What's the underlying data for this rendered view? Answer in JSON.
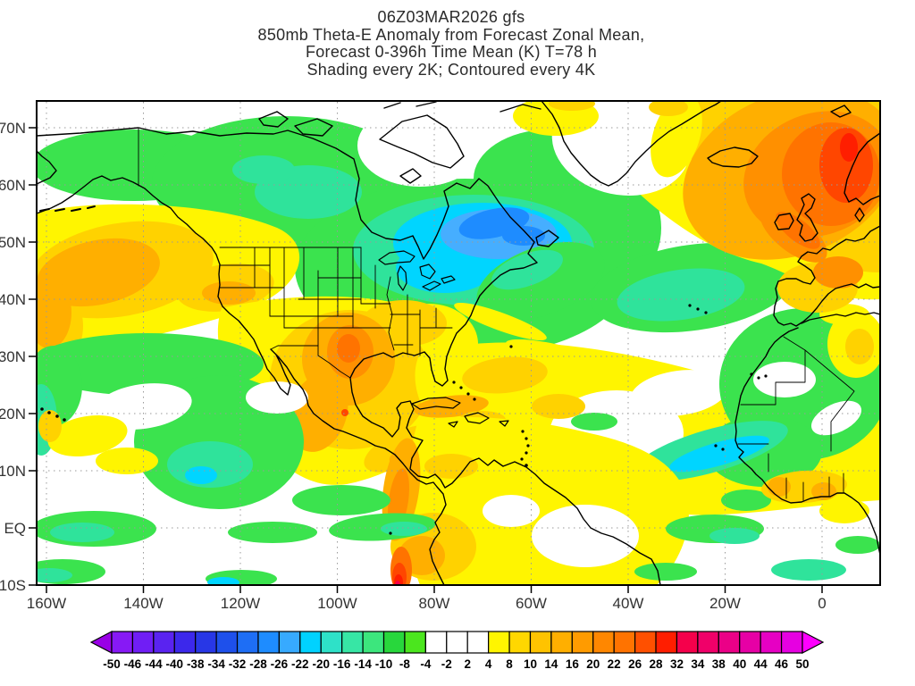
{
  "title": {
    "line1": "06Z03MAR2026 gfs",
    "line2": "850mb Theta-E Anomaly from Forecast Zonal Mean,",
    "line3": "Forecast 0-396h Time Mean (K) T=78 h",
    "line4": "Shading every 2K; Contoured every 4K"
  },
  "map": {
    "lat_ticks": [
      "70N",
      "60N",
      "50N",
      "40N",
      "30N",
      "20N",
      "10N",
      "EQ",
      "10S"
    ],
    "lon_ticks": [
      "160W",
      "140W",
      "120W",
      "100W",
      "80W",
      "60W",
      "40W",
      "20W",
      "0"
    ]
  },
  "colorbar": {
    "labels": [
      "-50",
      "-46",
      "-44",
      "-40",
      "-38",
      "-34",
      "-32",
      "-28",
      "-26",
      "-22",
      "-20",
      "-16",
      "-14",
      "-10",
      "-8",
      "-4",
      "-2",
      "2",
      "4",
      "8",
      "10",
      "14",
      "16",
      "20",
      "22",
      "26",
      "28",
      "32",
      "34",
      "38",
      "40",
      "44",
      "46",
      "50"
    ],
    "segment_colors": [
      "#8719F5",
      "#701EF5",
      "#5A23F0",
      "#3C28EB",
      "#2837E6",
      "#1E50EB",
      "#1E6EF5",
      "#1E8CFF",
      "#37AAFF",
      "#00D2FF",
      "#2EE1C8",
      "#37E6A5",
      "#3CE67D",
      "#28D73C",
      "#4BE61E",
      "#FFFFFF",
      "#FFFFFF",
      "#FFFFFF",
      "#FFF500",
      "#FFD700",
      "#FFC300",
      "#FFAF00",
      "#FF9B00",
      "#FF8700",
      "#FF7300",
      "#FF5000",
      "#FF1E00",
      "#F5004B",
      "#F00069",
      "#EB0087",
      "#E600A5",
      "#E600C3",
      "#E600E1"
    ],
    "arrow_left_color": "#9900E6",
    "arrow_right_color": "#FF00FF"
  },
  "chart_data": {
    "type": "heatmap",
    "title": "850mb Theta-E Anomaly from Forecast Zonal Mean",
    "model": "gfs",
    "init_time": "06Z03MAR2026",
    "forecast": "Forecast 0-396h Time Mean",
    "t_hour": 78,
    "units": "K",
    "shading_interval_K": 2,
    "contour_interval_K": 4,
    "lat_range": [
      "10S",
      "75N"
    ],
    "lon_range": [
      "162W",
      "12E"
    ],
    "y_ticks": [
      "70N",
      "60N",
      "50N",
      "40N",
      "30N",
      "20N",
      "10N",
      "EQ",
      "10S"
    ],
    "x_ticks": [
      "160W",
      "140W",
      "120W",
      "100W",
      "80W",
      "60W",
      "40W",
      "20W",
      "0"
    ],
    "grid": true,
    "legend_position": "bottom",
    "shading_levels": [
      -50,
      -46,
      -44,
      -40,
      -38,
      -34,
      -32,
      -28,
      -26,
      -22,
      -20,
      -16,
      -14,
      -10,
      -8,
      -4,
      -2,
      2,
      4,
      8,
      10,
      14,
      16,
      20,
      22,
      26,
      28,
      32,
      34,
      38,
      40,
      44,
      46,
      50
    ],
    "palette": [
      "#9900E6",
      "#8719F5",
      "#701EF5",
      "#5A23F0",
      "#3C28EB",
      "#2837E6",
      "#1E50EB",
      "#1E6EF5",
      "#1E8CFF",
      "#37AAFF",
      "#00D2FF",
      "#2EE1C8",
      "#37E6A5",
      "#3CE67D",
      "#28D73C",
      "#4BE61E",
      "#FFFFFF",
      "#FFFFFF",
      "#FFFFFF",
      "#FFF500",
      "#FFD700",
      "#FFC300",
      "#FFAF00",
      "#FF9B00",
      "#FF8700",
      "#FF7300",
      "#FF5000",
      "#FF1E00",
      "#F5004B",
      "#F00069",
      "#EB0087",
      "#E600A5",
      "#E600C3",
      "#E600E1",
      "#FF00FF"
    ],
    "anomaly_features": [
      {
        "region": "Hudson Bay / eastern Canada",
        "sign": "negative",
        "peak_K": -30
      },
      {
        "region": "Canadian Arctic and Alaska (broad band)",
        "sign": "negative",
        "peak_K": -10
      },
      {
        "region": "Gulf of Alaska",
        "sign": "positive",
        "peak_K": 18
      },
      {
        "region": "Texas / northern Mexico",
        "sign": "positive",
        "peak_K": 24
      },
      {
        "region": "Southeast US / Caribbean / tropical Atlantic",
        "sign": "positive",
        "peak_K": 10
      },
      {
        "region": "Central North Atlantic near 40N",
        "sign": "negative",
        "peak_K": -16
      },
      {
        "region": "Northeast Atlantic / UK / Norway",
        "sign": "positive",
        "peak_K": 30
      },
      {
        "region": "Greenland interior",
        "sign": "near-zero",
        "peak_K": 0
      },
      {
        "region": "Northwest Africa / Canary current",
        "sign": "negative",
        "peak_K": -20
      },
      {
        "region": "Colombian Andes / Peru coast",
        "sign": "positive",
        "peak_K": 32
      },
      {
        "region": "Subtropical East Pacific",
        "sign": "negative",
        "peak_K": -14
      }
    ]
  }
}
